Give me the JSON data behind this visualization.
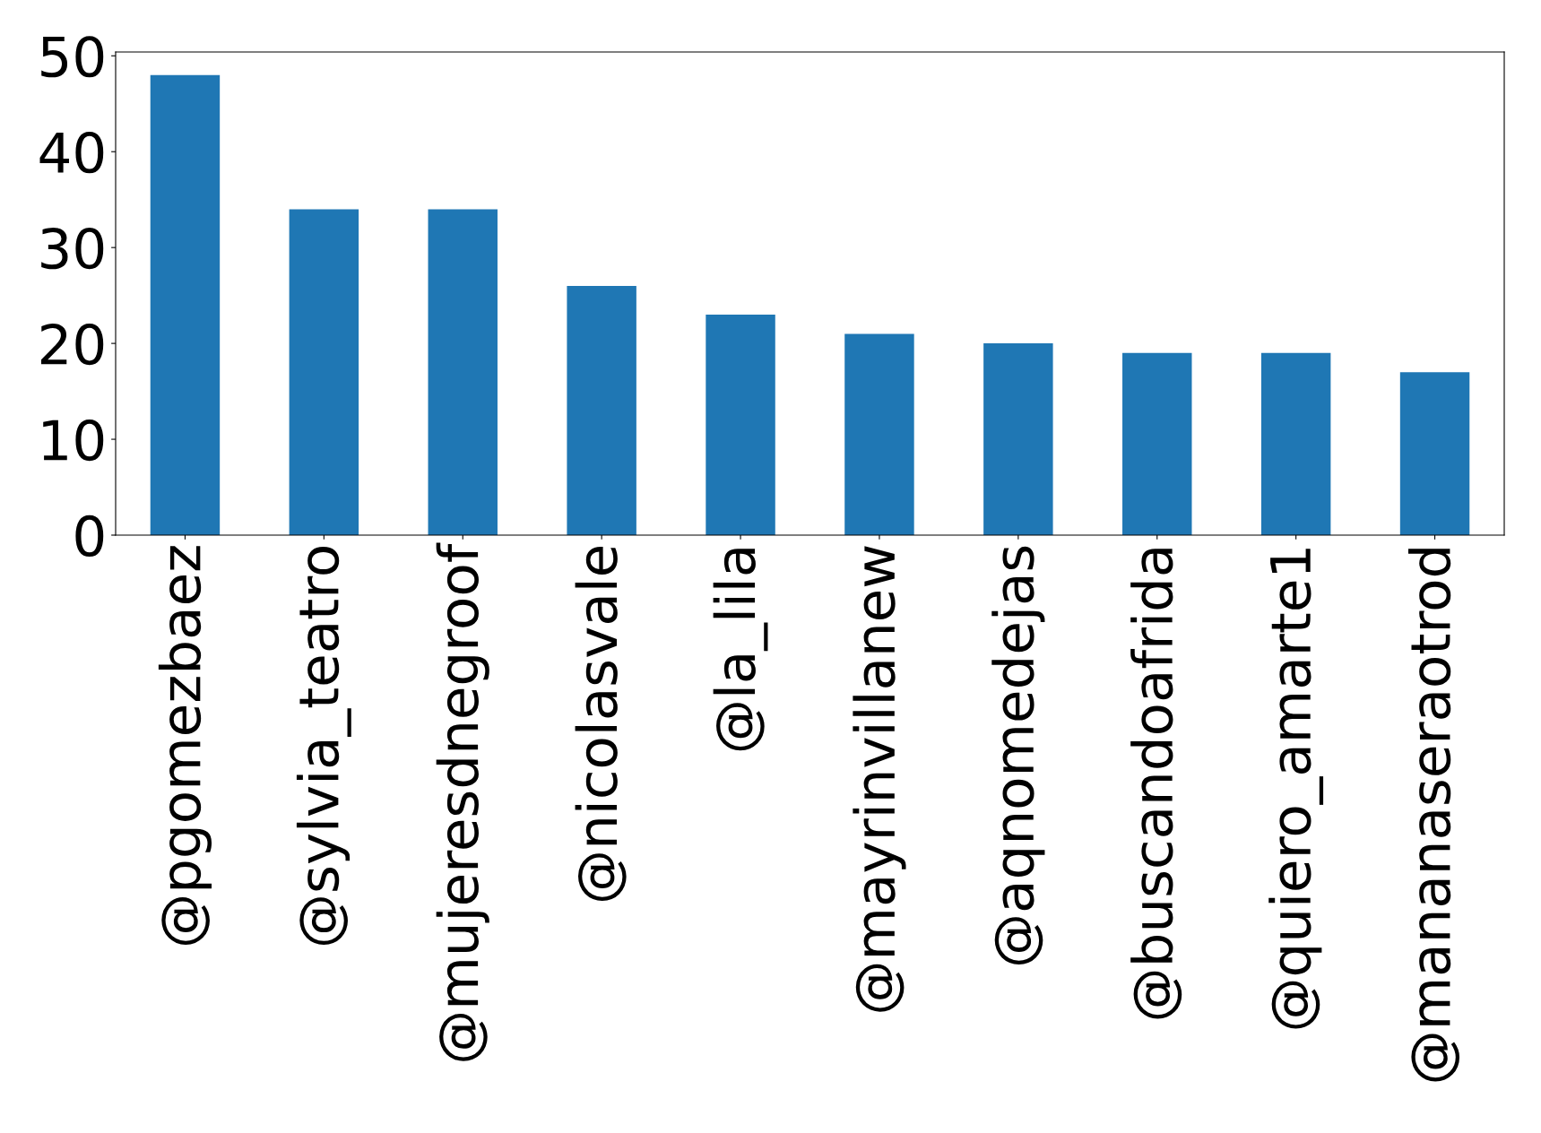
{
  "chart_data": {
    "type": "bar",
    "categories": [
      "@pgomezbaez",
      "@sylvia_teatro",
      "@mujeresdnegroof",
      "@nicolasvale",
      "@la_lila",
      "@mayrinvillanew",
      "@aqnomedejas",
      "@buscandoafrida",
      "@quiero_amarte1",
      "@mananaseraotrod"
    ],
    "values": [
      48,
      34,
      34,
      26,
      23,
      21,
      20,
      19,
      19,
      17
    ],
    "color": "#1f77b4",
    "ylim": [
      0,
      50.4
    ],
    "yticks": [
      0,
      10,
      20,
      30,
      40,
      50
    ],
    "grid": false,
    "legend": false
  }
}
